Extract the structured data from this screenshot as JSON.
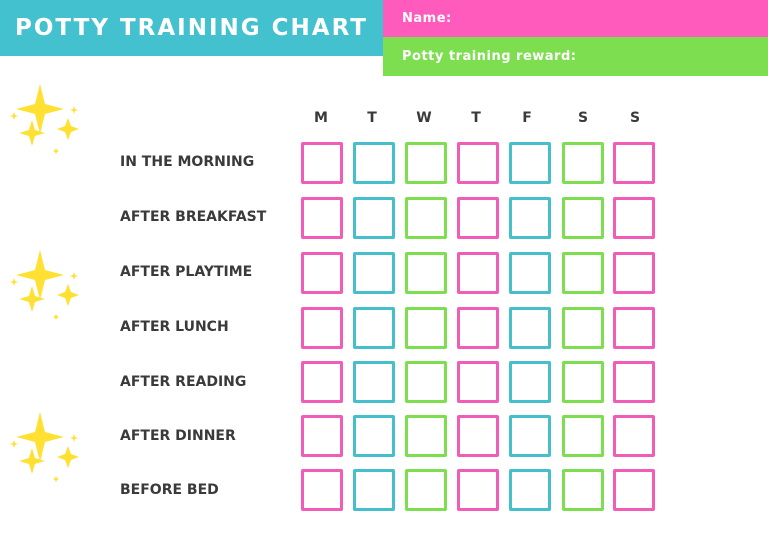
{
  "header": {
    "title": "POTTY TRAINING CHART",
    "name_label": "Name:",
    "reward_label": "Potty training reward:"
  },
  "days": [
    "M",
    "T",
    "W",
    "T",
    "F",
    "S",
    "S"
  ],
  "rows": [
    "IN THE MORNING",
    "AFTER BREAKFAST",
    "AFTER PLAYTIME",
    "AFTER LUNCH",
    "AFTER READING",
    "AFTER DINNER",
    "BEFORE BED"
  ],
  "colors": {
    "title_bg": "#44c1cf",
    "name_bg": "#ff5bbd",
    "reward_bg": "#7ddf4f",
    "star": "#ffe033",
    "box_colors": [
      "#f05cb8",
      "#45bfcc",
      "#7ddf4f",
      "#f05cb8",
      "#45bfcc",
      "#7ddf4f",
      "#f05cb8"
    ]
  },
  "icons": [
    "star-cluster-icon"
  ]
}
